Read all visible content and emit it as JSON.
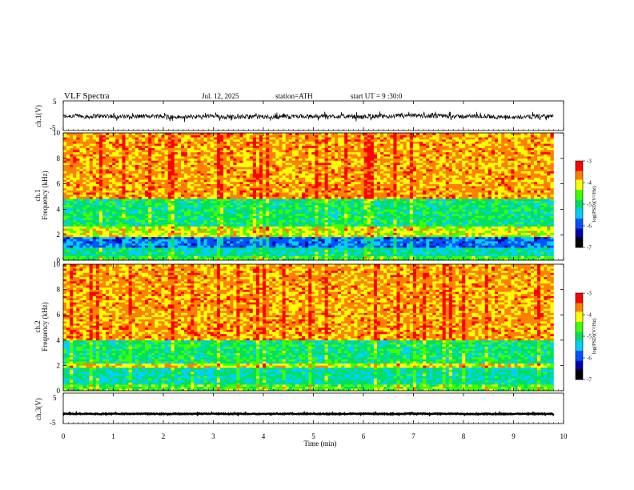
{
  "header": {
    "title": "VLF Spectra",
    "date": "Jul. 12, 2025",
    "station": "station=ATH",
    "start_ut": "start UT = 9 :30:0"
  },
  "chart_data": [
    {
      "type": "line",
      "id": "ch1_waveform",
      "ylabel": "ch.1(V)",
      "ylim": [
        -5,
        5
      ],
      "yticks": [
        "5",
        "-5"
      ],
      "x_range_min": [
        0,
        9.8
      ],
      "description_values": {
        "baseline": -0.3,
        "noise_amplitude": 0.9
      }
    },
    {
      "type": "heatmap",
      "id": "ch1_spectrogram",
      "ylabel": "ch.1 Frequency (kHz)",
      "ylim": [
        0,
        10
      ],
      "yticks": [
        "0",
        "2",
        "4",
        "6",
        "8",
        "10"
      ],
      "x_range_min": [
        0,
        9.8
      ],
      "bands_khz": [
        {
          "from": 0,
          "to": 0.4,
          "level": -4.7
        },
        {
          "from": 0.4,
          "to": 1.0,
          "level": -5.2
        },
        {
          "from": 1.0,
          "to": 1.9,
          "level": -5.8
        },
        {
          "from": 1.9,
          "to": 2.6,
          "level": -4.2
        },
        {
          "from": 2.6,
          "to": 4.8,
          "level": -5.0
        },
        {
          "from": 4.8,
          "to": 10,
          "level": -3.8
        }
      ],
      "colorbar": {
        "label": "log(PSD)(V²/Hz)",
        "range": [
          -7,
          -3
        ],
        "ticks": [
          "-3",
          "-4",
          "-5",
          "-6",
          "-7"
        ]
      }
    },
    {
      "type": "heatmap",
      "id": "ch2_spectrogram",
      "ylabel": "ch.2 Frequency (kHz)",
      "ylim": [
        0,
        10
      ],
      "yticks": [
        "0",
        "2",
        "4",
        "6",
        "8",
        "10"
      ],
      "x_range_min": [
        0,
        9.8
      ],
      "bands_khz": [
        {
          "from": 0,
          "to": 0.5,
          "level": -4.6
        },
        {
          "from": 0.5,
          "to": 1.8,
          "level": -5.2
        },
        {
          "from": 1.8,
          "to": 2.2,
          "level": -4.1
        },
        {
          "from": 2.2,
          "to": 4.0,
          "level": -5.0
        },
        {
          "from": 4.0,
          "to": 10,
          "level": -3.8
        }
      ],
      "colorbar": {
        "label": "log(PSD)(V²/Hz)",
        "range": [
          -7,
          -3
        ],
        "ticks": [
          "-3",
          "-4",
          "-5",
          "-6",
          "-7"
        ]
      }
    },
    {
      "type": "line",
      "id": "ch3_waveform",
      "ylabel": "ch.3(V)",
      "ylim": [
        -5,
        5
      ],
      "yticks": [
        "5",
        "-5"
      ],
      "x_range_min": [
        0,
        9.8
      ],
      "description_values": {
        "baseline": -1.8,
        "noise_amplitude": 0.15
      }
    }
  ],
  "xaxis": {
    "label": "Time (min)",
    "range": [
      0,
      10
    ],
    "ticks": [
      "0",
      "1",
      "2",
      "3",
      "4",
      "5",
      "6",
      "7",
      "8",
      "9",
      "10"
    ]
  },
  "colors": {
    "colormap": [
      "#000000",
      "#0000b0",
      "#0050ff",
      "#00d0ff",
      "#00e060",
      "#40ff00",
      "#ffff00",
      "#ff8000",
      "#ff0000",
      "#ffffff"
    ]
  }
}
